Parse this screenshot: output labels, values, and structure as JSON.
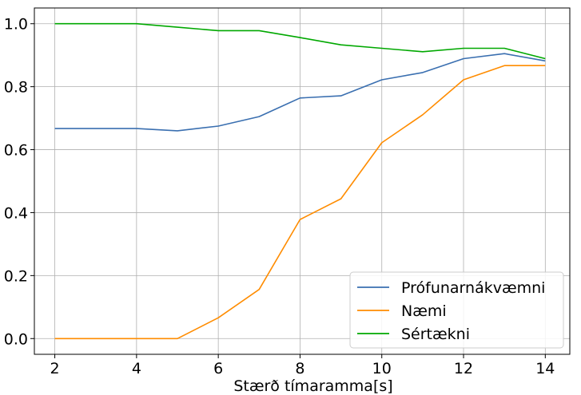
{
  "chart_data": {
    "type": "line",
    "title": "",
    "xlabel": "Stærð tímaramma[s]",
    "ylabel": "",
    "x": [
      2,
      3,
      4,
      5,
      6,
      7,
      8,
      9,
      10,
      11,
      12,
      13,
      14
    ],
    "series": [
      {
        "name": "Prófunarnákvæmni",
        "color": "#3a6fb0",
        "values": [
          0.667,
          0.667,
          0.667,
          0.66,
          0.675,
          0.705,
          0.764,
          0.771,
          0.822,
          0.845,
          0.889,
          0.905,
          0.882
        ]
      },
      {
        "name": "Næmi",
        "color": "#ff8c00",
        "values": [
          0.0,
          0.0,
          0.0,
          0.0,
          0.066,
          0.156,
          0.378,
          0.444,
          0.622,
          0.711,
          0.822,
          0.867,
          0.867
        ]
      },
      {
        "name": "Sértækni",
        "color": "#00a800",
        "values": [
          1.0,
          1.0,
          1.0,
          0.989,
          0.978,
          0.978,
          0.956,
          0.933,
          0.922,
          0.911,
          0.922,
          0.922,
          0.889
        ]
      }
    ],
    "xlim": [
      1.5,
      14.6
    ],
    "ylim": [
      -0.05,
      1.05
    ],
    "xticks": [
      2,
      4,
      6,
      8,
      10,
      12,
      14
    ],
    "yticks": [
      0.0,
      0.2,
      0.4,
      0.6,
      0.8,
      1.0
    ],
    "xtick_labels": [
      "2",
      "4",
      "6",
      "8",
      "10",
      "12",
      "14"
    ],
    "ytick_labels": [
      "0.0",
      "0.2",
      "0.4",
      "0.6",
      "0.8",
      "1.0"
    ],
    "grid": true,
    "legend_position": "lower-right"
  }
}
